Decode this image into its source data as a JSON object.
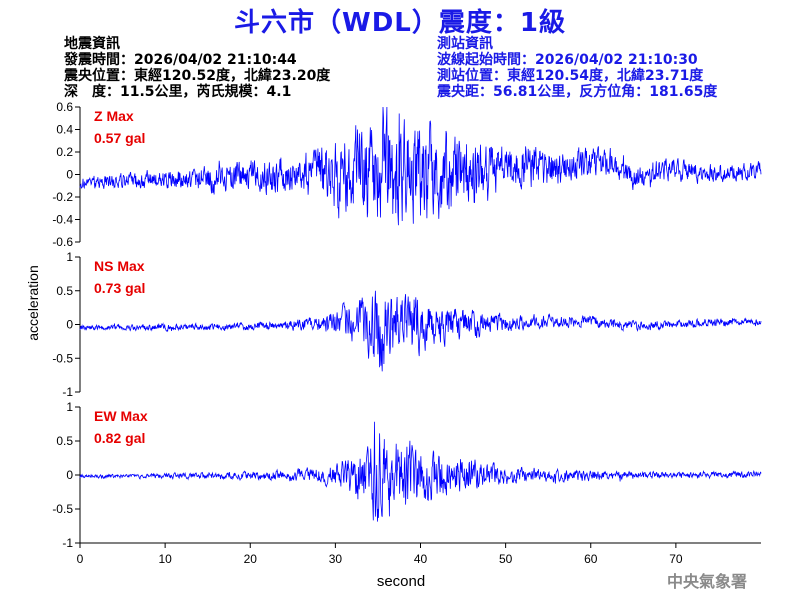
{
  "title": "斗六市（WDL）震度：1級",
  "quake_info": {
    "heading": "地震資訊",
    "lines": [
      "發震時間：2026/04/02 21:10:44",
      "震央位置：東經120.52度，北緯23.20度",
      "深　度：11.5公里，芮氏規模：4.1"
    ]
  },
  "station_info": {
    "heading": "測站資訊",
    "lines": [
      "波線起始時間：2026/04/02 21:10:30",
      "測站位置：東經120.54度，北緯23.71度",
      "震央距：56.81公里，反方位角：181.65度"
    ]
  },
  "watermark": "中央氣象署",
  "colors": {
    "trace": "#0000ff",
    "title": "#1a1ae6",
    "max_label": "#e60000",
    "axis": "#000000"
  },
  "chart_data": [
    {
      "type": "line",
      "component": "Z",
      "max_label": "Z Max",
      "max_value": "0.57 gal",
      "ylim": [
        -0.6,
        0.6
      ],
      "yticks": [
        -0.6,
        -0.4,
        -0.2,
        0,
        0.2,
        0.4,
        0.6
      ],
      "ytick_labels": [
        "-0.6",
        "-0.4",
        "-0.2",
        "0",
        "0.2",
        "0.4",
        "0.6"
      ],
      "xlim": [
        0,
        80
      ],
      "baseline": -0.07,
      "envelope": {
        "x": [
          0,
          5,
          10,
          15,
          20,
          22,
          25,
          27,
          29,
          31,
          33,
          35,
          36,
          38,
          40,
          42,
          44,
          46,
          48,
          50,
          52,
          54,
          56,
          58,
          60,
          62,
          64,
          66,
          68,
          70,
          72,
          74,
          76,
          78,
          80
        ],
        "y": [
          0.06,
          0.07,
          0.09,
          0.12,
          0.14,
          0.15,
          0.17,
          0.22,
          0.3,
          0.35,
          0.4,
          0.5,
          0.57,
          0.5,
          0.44,
          0.4,
          0.36,
          0.3,
          0.26,
          0.22,
          0.2,
          0.18,
          0.16,
          0.14,
          0.14,
          0.13,
          0.12,
          0.11,
          0.11,
          0.1,
          0.09,
          0.09,
          0.08,
          0.08,
          0.07
        ]
      },
      "drift": {
        "x": [
          0,
          10,
          20,
          27,
          30,
          35,
          40,
          45,
          50,
          52,
          55,
          58,
          60,
          62,
          65,
          70,
          75,
          80
        ],
        "y": [
          -0.07,
          -0.05,
          -0.02,
          0.0,
          0.02,
          0.03,
          0.03,
          -0.02,
          0.06,
          0.1,
          0.04,
          0.08,
          0.12,
          0.08,
          -0.03,
          0.05,
          0.0,
          0.05
        ]
      }
    },
    {
      "type": "line",
      "component": "NS",
      "max_label": "NS Max",
      "max_value": "0.73 gal",
      "ylim": [
        -1,
        1
      ],
      "yticks": [
        -1,
        -0.5,
        0,
        0.5,
        1
      ],
      "ytick_labels": [
        "-1",
        "-0.5",
        "0",
        "0.5",
        "1"
      ],
      "xlim": [
        0,
        80
      ],
      "baseline": -0.05,
      "envelope": {
        "x": [
          0,
          5,
          10,
          15,
          20,
          25,
          28,
          30,
          32,
          34,
          35,
          36,
          38,
          40,
          42,
          44,
          46,
          48,
          50,
          52,
          55,
          58,
          60,
          62,
          65,
          70,
          75,
          80
        ],
        "y": [
          0.04,
          0.04,
          0.05,
          0.05,
          0.06,
          0.08,
          0.12,
          0.2,
          0.3,
          0.45,
          0.73,
          0.55,
          0.45,
          0.38,
          0.3,
          0.25,
          0.2,
          0.16,
          0.14,
          0.12,
          0.1,
          0.09,
          0.1,
          0.08,
          0.07,
          0.06,
          0.06,
          0.05
        ]
      },
      "drift": {
        "x": [
          0,
          10,
          20,
          30,
          40,
          50,
          55,
          60,
          65,
          70,
          80
        ],
        "y": [
          -0.05,
          -0.04,
          -0.03,
          0.0,
          -0.02,
          0.02,
          0.05,
          0.05,
          -0.02,
          0.0,
          0.05
        ]
      }
    },
    {
      "type": "line",
      "component": "EW",
      "max_label": "EW Max",
      "max_value": "0.82 gal",
      "ylim": [
        -1,
        1
      ],
      "yticks": [
        -1,
        -0.5,
        0,
        0.5,
        1
      ],
      "ytick_labels": [
        "-1",
        "-0.5",
        "0",
        "0.5",
        "1"
      ],
      "xlim": [
        0,
        80
      ],
      "baseline": -0.02,
      "envelope": {
        "x": [
          0,
          5,
          10,
          15,
          20,
          25,
          28,
          30,
          32,
          34,
          35,
          36,
          38,
          40,
          42,
          44,
          46,
          48,
          50,
          52,
          55,
          58,
          60,
          62,
          65,
          70,
          75,
          80
        ],
        "y": [
          0.03,
          0.03,
          0.04,
          0.05,
          0.06,
          0.08,
          0.12,
          0.18,
          0.3,
          0.45,
          0.82,
          0.6,
          0.5,
          0.42,
          0.35,
          0.28,
          0.22,
          0.18,
          0.14,
          0.12,
          0.1,
          0.08,
          0.08,
          0.07,
          0.06,
          0.05,
          0.05,
          0.05
        ]
      },
      "drift": {
        "x": [
          0,
          20,
          40,
          60,
          80
        ],
        "y": [
          -0.02,
          -0.01,
          0.0,
          -0.01,
          0.01
        ]
      }
    }
  ],
  "axes": {
    "xlabel": "second",
    "ylabel": "acceleration",
    "xticks": [
      0,
      10,
      20,
      30,
      40,
      50,
      60,
      70
    ],
    "xtick_labels": [
      "0",
      "10",
      "20",
      "30",
      "40",
      "50",
      "60",
      "70"
    ]
  }
}
